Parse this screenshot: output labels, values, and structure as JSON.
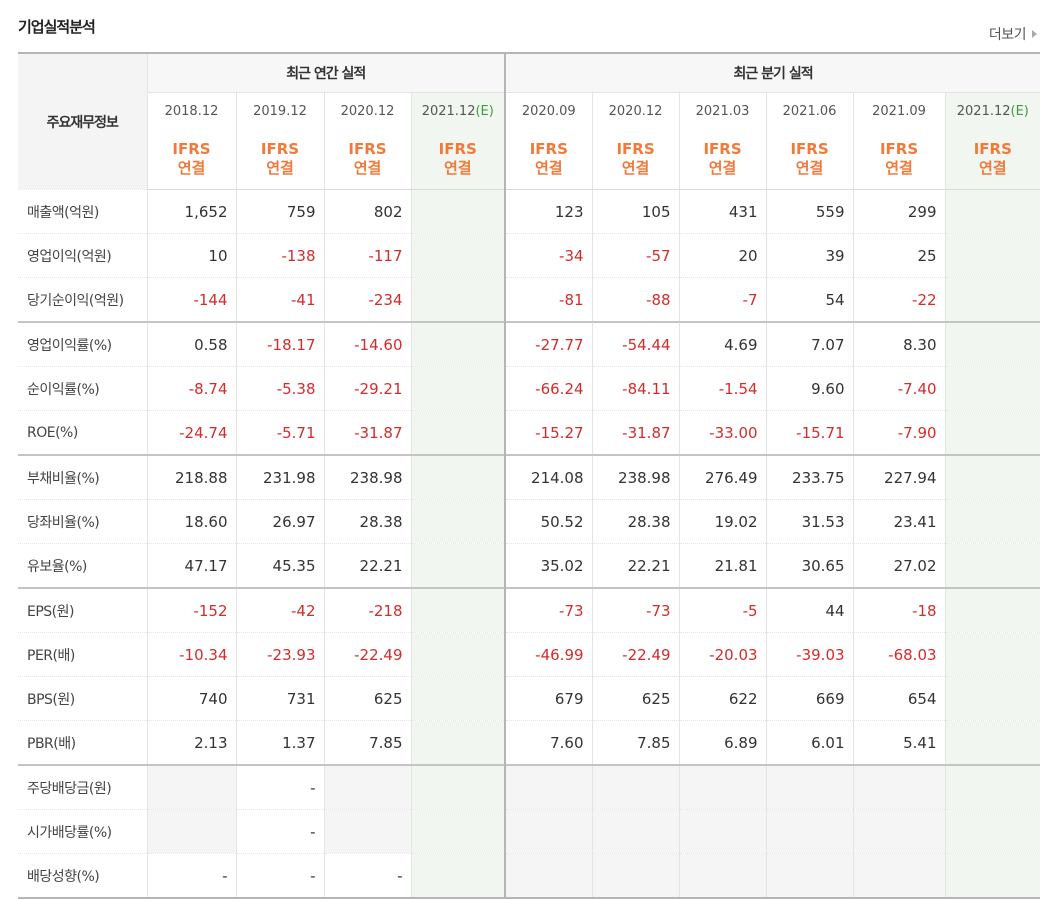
{
  "title": "기업실적분석",
  "more_label": "더보기",
  "label_header": "주요재무정보",
  "annual_label": "최근 연간 실적",
  "quarterly_label": "최근 분기 실적",
  "periods": [
    {
      "text": "2018.12",
      "est": ""
    },
    {
      "text": "2019.12",
      "est": ""
    },
    {
      "text": "2020.12",
      "est": ""
    },
    {
      "text": "2021.12",
      "est": "(E)"
    },
    {
      "text": "2020.09",
      "est": ""
    },
    {
      "text": "2020.12",
      "est": ""
    },
    {
      "text": "2021.03",
      "est": ""
    },
    {
      "text": "2021.06",
      "est": ""
    },
    {
      "text": "2021.09",
      "est": ""
    },
    {
      "text": "2021.12",
      "est": "(E)"
    }
  ],
  "ifrs_line1": "IFRS",
  "ifrs_line2": "연결",
  "colors": {
    "negative": "#d42b2b",
    "ifrs": "#f07a3a",
    "estimate": "#3aa13a"
  },
  "rows": [
    {
      "label": "매출액(억원)",
      "values": [
        "1,652",
        "759",
        "802",
        "",
        "123",
        "105",
        "431",
        "559",
        "299",
        ""
      ]
    },
    {
      "label": "영업이익(억원)",
      "values": [
        "10",
        "-138",
        "-117",
        "",
        "-34",
        "-57",
        "20",
        "39",
        "25",
        ""
      ]
    },
    {
      "label": "당기순이익(억원)",
      "values": [
        "-144",
        "-41",
        "-234",
        "",
        "-81",
        "-88",
        "-7",
        "54",
        "-22",
        ""
      ]
    },
    {
      "label": "영업이익률(%)",
      "values": [
        "0.58",
        "-18.17",
        "-14.60",
        "",
        "-27.77",
        "-54.44",
        "4.69",
        "7.07",
        "8.30",
        ""
      ]
    },
    {
      "label": "순이익률(%)",
      "values": [
        "-8.74",
        "-5.38",
        "-29.21",
        "",
        "-66.24",
        "-84.11",
        "-1.54",
        "9.60",
        "-7.40",
        ""
      ]
    },
    {
      "label": "ROE(%)",
      "values": [
        "-24.74",
        "-5.71",
        "-31.87",
        "",
        "-15.27",
        "-31.87",
        "-33.00",
        "-15.71",
        "-7.90",
        ""
      ]
    },
    {
      "label": "부채비율(%)",
      "values": [
        "218.88",
        "231.98",
        "238.98",
        "",
        "214.08",
        "238.98",
        "276.49",
        "233.75",
        "227.94",
        ""
      ]
    },
    {
      "label": "당좌비율(%)",
      "values": [
        "18.60",
        "26.97",
        "28.38",
        "",
        "50.52",
        "28.38",
        "19.02",
        "31.53",
        "23.41",
        ""
      ]
    },
    {
      "label": "유보율(%)",
      "values": [
        "47.17",
        "45.35",
        "22.21",
        "",
        "35.02",
        "22.21",
        "21.81",
        "30.65",
        "27.02",
        ""
      ]
    },
    {
      "label": "EPS(원)",
      "values": [
        "-152",
        "-42",
        "-218",
        "",
        "-73",
        "-73",
        "-5",
        "44",
        "-18",
        ""
      ]
    },
    {
      "label": "PER(배)",
      "values": [
        "-10.34",
        "-23.93",
        "-22.49",
        "",
        "-46.99",
        "-22.49",
        "-20.03",
        "-39.03",
        "-68.03",
        ""
      ]
    },
    {
      "label": "BPS(원)",
      "values": [
        "740",
        "731",
        "625",
        "",
        "679",
        "625",
        "622",
        "669",
        "654",
        ""
      ]
    },
    {
      "label": "PBR(배)",
      "values": [
        "2.13",
        "1.37",
        "7.85",
        "",
        "7.60",
        "7.85",
        "6.89",
        "6.01",
        "5.41",
        ""
      ]
    },
    {
      "label": "주당배당금(원)",
      "values": [
        "",
        "-",
        "",
        "",
        "",
        "",
        "",
        "",
        "",
        ""
      ]
    },
    {
      "label": "시가배당률(%)",
      "values": [
        "",
        "-",
        "",
        "",
        "",
        "",
        "",
        "",
        "",
        ""
      ]
    },
    {
      "label": "배당성향(%)",
      "values": [
        "-",
        "-",
        "-",
        "",
        "",
        "",
        "",
        "",
        "",
        ""
      ]
    }
  ]
}
